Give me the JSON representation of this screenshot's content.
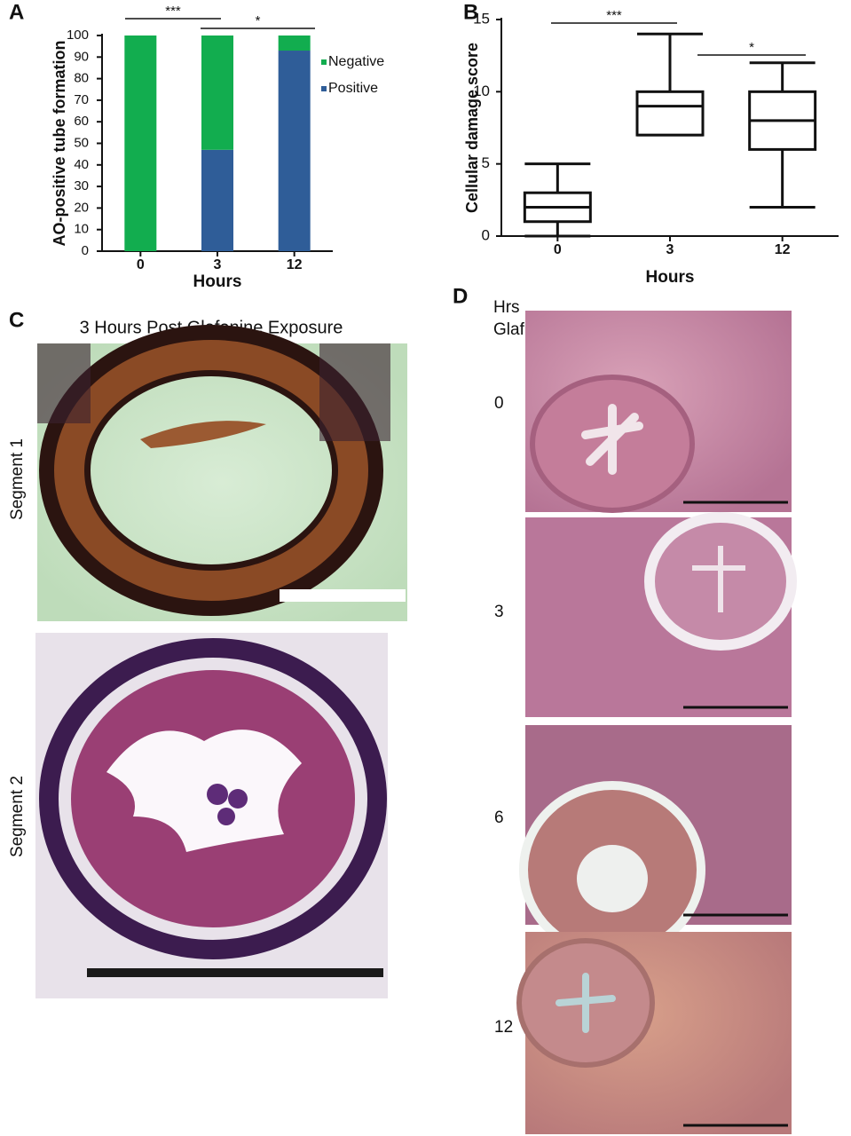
{
  "chart_data": [
    {
      "type": "stacked_bar",
      "panel": "A",
      "categories": [
        "0",
        "3",
        "12"
      ],
      "series": [
        {
          "name": "Positive",
          "color": "#2f5d98",
          "values": [
            0,
            47,
            93
          ]
        },
        {
          "name": "Negative",
          "color": "#12ad4f",
          "values": [
            100,
            53,
            7
          ]
        }
      ],
      "ylim": [
        0,
        100
      ],
      "yticks": [
        0,
        10,
        20,
        30,
        40,
        50,
        60,
        70,
        80,
        90,
        100
      ],
      "ylabel": "AO-positive tube formation",
      "xlabel": "Hours",
      "annotations": [
        "***",
        "*"
      ]
    },
    {
      "type": "box",
      "panel": "B",
      "categories": [
        "0",
        "3",
        "12"
      ],
      "min": [
        0,
        7,
        2
      ],
      "q1": [
        1,
        7,
        6
      ],
      "median": [
        2,
        9,
        8
      ],
      "q3": [
        3,
        10,
        10
      ],
      "max": [
        5,
        14,
        12
      ],
      "ylim": [
        0,
        15
      ],
      "yticks": [
        0,
        5,
        10,
        15
      ],
      "ylabel": "Cellular damage score",
      "xlabel": "Hours",
      "annotations": [
        "***",
        "*"
      ]
    }
  ],
  "panel_c": {
    "label": "C",
    "title": "3 Hours Post Glafenine Exposure",
    "images": [
      {
        "label": "Segment 1"
      },
      {
        "label": "Segment 2"
      }
    ]
  },
  "panel_d": {
    "label": "D",
    "header": [
      "Hrs",
      "Glaf"
    ],
    "images": [
      {
        "label": "0"
      },
      {
        "label": "3"
      },
      {
        "label": "6"
      },
      {
        "label": "12"
      }
    ]
  }
}
